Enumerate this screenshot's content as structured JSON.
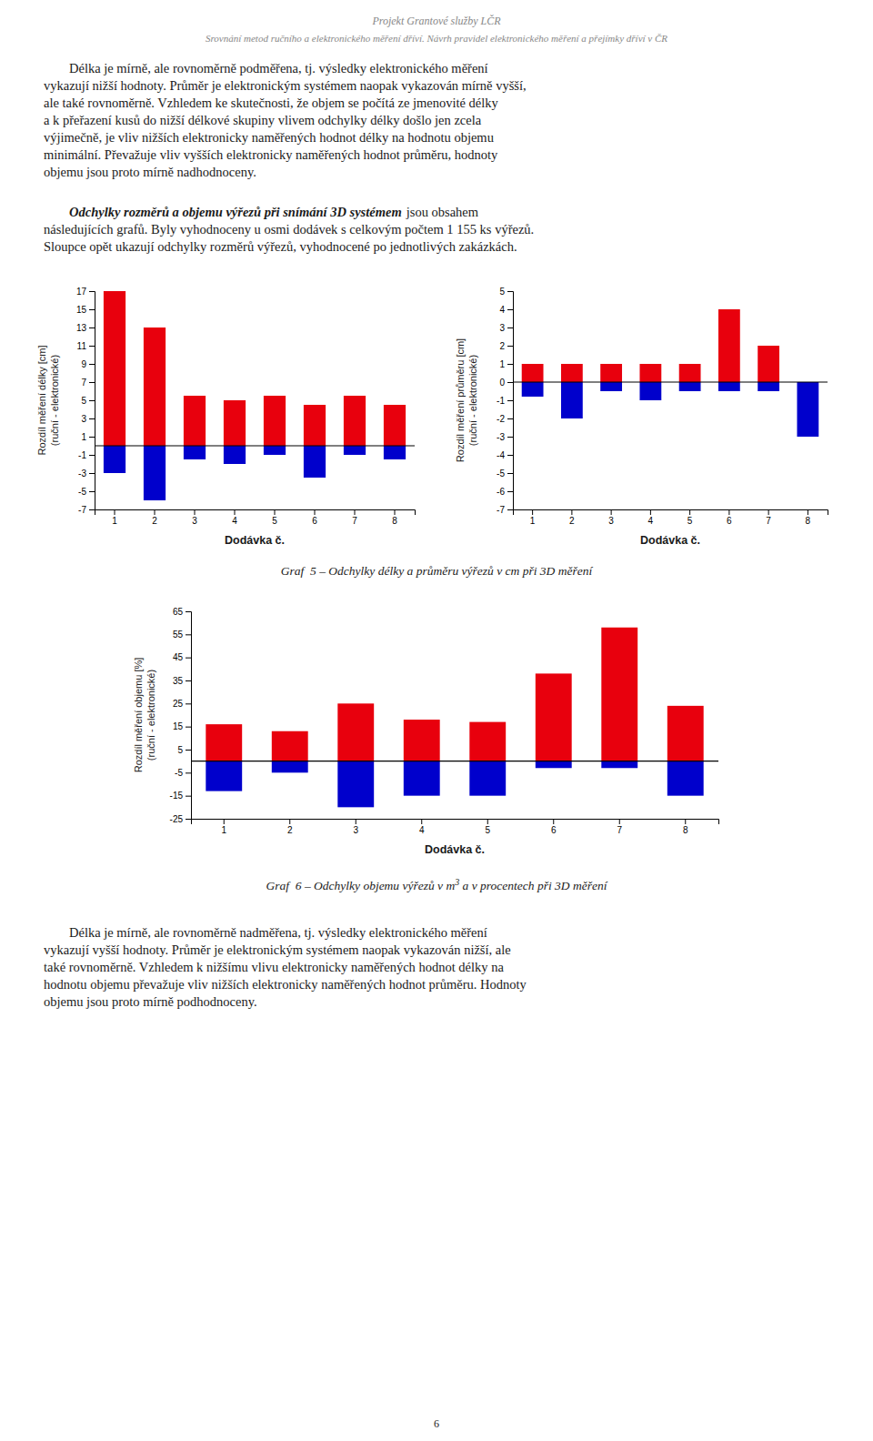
{
  "header": [
    "Projekt Grantové služby LČR",
    "Srovnání metod ručního a elektronického měření dříví. Návrh pravidel elektronického měření a přejímky dříví v ČR"
  ],
  "paragraphs": [
    {
      "lines": [
        "Délka je mírně, ale rovnoměrně podměřena, tj. výsledky elektronického měření",
        "vykazují nižší hodnoty. Průměr je elektronickým systémem naopak vykazován mírně vyšší,",
        "ale také rovnoměrně. Vzhledem ke skutečnosti, že objem se počítá ze jmenovité délky",
        "a k přeřazení kusů do nižší délkové skupiny vlivem odchylky délky došlo jen zcela",
        "výjimečně, je vliv nižších elektronicky naměřených hodnot délky na hodnotu objemu",
        "minimální. Převažuje vliv vyšších elektronicky naměřených hodnot průměru, hodnoty",
        "objemu jsou proto mírně nadhodnoceny."
      ]
    },
    {
      "lead": "Odchylky rozměrů a objemu výřezů při snímání 3D systémem",
      "lines": [
        "jsou obsahem",
        "následujících grafů. Byly vyhodnoceny u osmi dodávek s celkovým počtem 1 155 ks výřezů.",
        "Sloupce opět ukazují odchylky rozměrů výřezů, vyhodnocené po jednotlivých zakázkách."
      ]
    },
    {
      "lines": [
        "Délka je mírně, ale rovnoměrně nadměřena, tj. výsledky elektronického měření",
        "vykazují vyšší hodnoty. Průměr je elektronickým systémem naopak vykazován nižší, ale",
        "také rovnoměrně. Vzhledem k nižšímu vlivu elektronicky naměřených hodnot délky na",
        "hodnotu objemu převažuje vliv nižších elektronicky naměřených hodnot průměru. Hodnoty",
        "objemu jsou proto mírně podhodnoceny."
      ]
    }
  ],
  "captions": [
    {
      "text": "Graf  5 – Odchylky délky a průměru výřezů v cm při 3D měření"
    },
    {
      "text": "Graf  6 – Odchylky objemu výřezů v m",
      "sup": "3",
      "post": " a v procentech při 3D měření"
    }
  ],
  "page_number": "6",
  "chart_data": [
    {
      "type": "bar",
      "x_label": "Dodávka č.",
      "y_label": [
        "Rozdíl měření délky [cm]",
        "(ruční - elektronické)"
      ],
      "categories": [
        "1",
        "2",
        "3",
        "4",
        "5",
        "6",
        "7",
        "8"
      ],
      "series": [
        {
          "color": "#e8000d",
          "values": [
            17,
            13,
            5.5,
            5.0,
            5.5,
            4.5,
            5.5,
            4.5
          ]
        },
        {
          "color": "#0000cc",
          "values": [
            -3,
            -6,
            -1.5,
            -2.0,
            -1.0,
            -3.5,
            -1.0,
            -1.5
          ]
        }
      ],
      "ylim": [
        -7,
        17
      ],
      "yticks": [
        -7,
        -5,
        -3,
        -1,
        1,
        3,
        5,
        7,
        9,
        11,
        13,
        15,
        17
      ],
      "grid": false
    },
    {
      "type": "bar",
      "x_label": "Dodávka č.",
      "y_label": [
        "Rozdíl měření průměru [cm]",
        "(ruční - elektronické)"
      ],
      "categories": [
        "1",
        "2",
        "3",
        "4",
        "5",
        "6",
        "7",
        "8"
      ],
      "series": [
        {
          "color": "#e8000d",
          "values": [
            1.0,
            1.0,
            1.0,
            1.0,
            1.0,
            4.0,
            2.0,
            0.0
          ]
        },
        {
          "color": "#0000cc",
          "values": [
            -0.8,
            -2.0,
            -0.5,
            -1.0,
            -0.5,
            -0.5,
            -0.5,
            -3.0
          ]
        }
      ],
      "ylim": [
        -7,
        5
      ],
      "yticks": [
        -7,
        -6,
        -5,
        -4,
        -3,
        -2,
        -1,
        0,
        1,
        2,
        3,
        4,
        5
      ],
      "grid": false
    },
    {
      "type": "bar",
      "x_label": "Dodávka č.",
      "y_label": [
        "Rozdíl měření objemu [%]",
        "(ruční - elektronické)"
      ],
      "categories": [
        "1",
        "2",
        "3",
        "4",
        "5",
        "6",
        "7",
        "8"
      ],
      "series": [
        {
          "color": "#e8000d",
          "values": [
            16,
            13,
            25,
            18,
            17,
            38,
            58,
            24
          ]
        },
        {
          "color": "#0000cc",
          "values": [
            -13,
            -5,
            -20,
            -15,
            -15,
            -3,
            -3,
            -15
          ]
        }
      ],
      "ylim": [
        -25,
        65
      ],
      "yticks": [
        -25,
        -15,
        -5,
        5,
        15,
        25,
        35,
        45,
        55,
        65
      ],
      "grid": false
    }
  ]
}
